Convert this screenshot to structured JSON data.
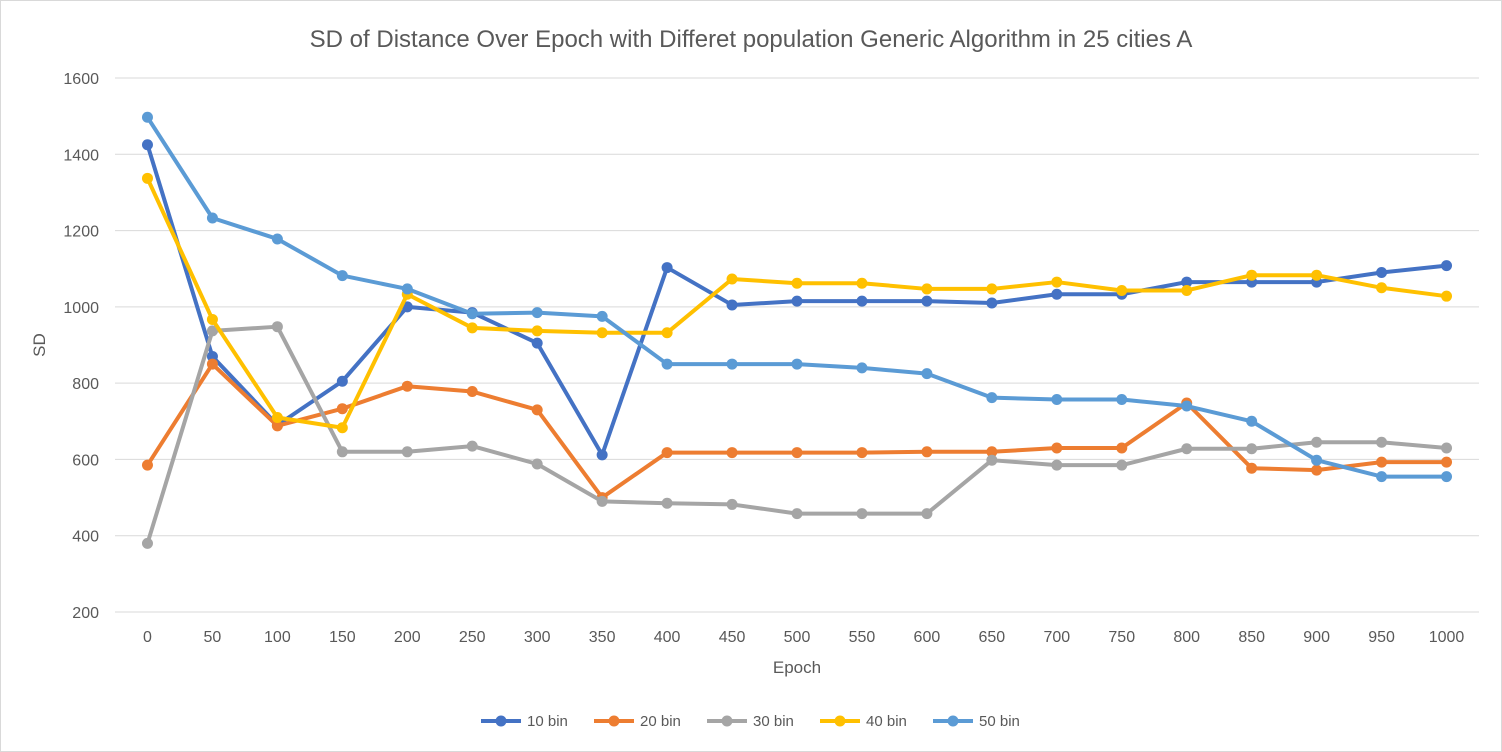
{
  "chart_data": {
    "type": "line",
    "title": "SD of Distance Over Epoch with Differet population Generic Algorithm in 25 cities A",
    "xlabel": "Epoch",
    "ylabel": "SD",
    "ylim": [
      200,
      1600
    ],
    "yticks": [
      200,
      400,
      600,
      800,
      1000,
      1200,
      1400,
      1600
    ],
    "grid": true,
    "legend_position": "bottom",
    "x": [
      0,
      50,
      100,
      150,
      200,
      250,
      300,
      350,
      400,
      450,
      500,
      550,
      600,
      650,
      700,
      750,
      800,
      850,
      900,
      950,
      1000
    ],
    "series": [
      {
        "name": "10 bin",
        "color": "#4472C4",
        "values": [
          1425,
          870,
          690,
          805,
          1000,
          985,
          905,
          612,
          1103,
          1005,
          1015,
          1015,
          1015,
          1010,
          1033,
          1033,
          1065,
          1065,
          1065,
          1090,
          1108
        ]
      },
      {
        "name": "20 bin",
        "color": "#ED7D31",
        "values": [
          585,
          850,
          688,
          733,
          792,
          778,
          730,
          500,
          618,
          618,
          618,
          618,
          620,
          620,
          630,
          630,
          748,
          577,
          572,
          593,
          593
        ]
      },
      {
        "name": "30 bin",
        "color": "#A5A5A5",
        "values": [
          380,
          937,
          948,
          620,
          620,
          635,
          588,
          490,
          485,
          482,
          458,
          458,
          458,
          598,
          585,
          585,
          628,
          628,
          645,
          645,
          630
        ]
      },
      {
        "name": "40 bin",
        "color": "#FFC000",
        "values": [
          1337,
          967,
          710,
          683,
          1033,
          945,
          937,
          932,
          932,
          1073,
          1062,
          1062,
          1047,
          1047,
          1065,
          1043,
          1043,
          1083,
          1083,
          1050,
          1028
        ]
      },
      {
        "name": "50 bin",
        "color": "#5B9BD5",
        "values": [
          1497,
          1233,
          1178,
          1082,
          1047,
          982,
          985,
          975,
          850,
          850,
          850,
          840,
          825,
          762,
          757,
          757,
          740,
          700,
          598,
          555,
          555
        ]
      }
    ]
  }
}
